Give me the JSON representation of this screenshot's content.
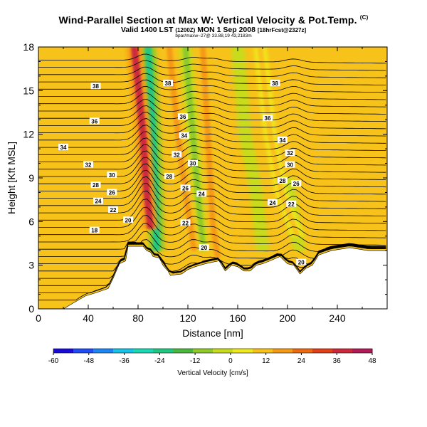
{
  "header": {
    "title": "Wind-Parallel Section at Max W: Vertical Velocity & Pot.Temp.",
    "copyright": "(C)",
    "valid_prefix": "Valid 1400 LST",
    "valid_z": "(1200Z)",
    "valid_date": "MON 1 Sep 2008",
    "run": "[18hrFcst@2327z]",
    "subtitle": "bpar/maxw~27@ 33.88,19 43,2183m"
  },
  "colorbar": {
    "label": "Vertical Velocity [cm/s]",
    "ticks": [
      -60,
      -48,
      -36,
      -24,
      -12,
      0,
      12,
      24,
      36,
      48
    ],
    "colors": [
      "#1a0bd8",
      "#1f4cf5",
      "#1b86f4",
      "#16c3e6",
      "#19d9b4",
      "#22c882",
      "#4bb840",
      "#8dca2a",
      "#c8dc1e",
      "#f0e91e",
      "#f7c21a",
      "#f59a16",
      "#ee6a12",
      "#e1401a",
      "#cc2a3c",
      "#b01c56"
    ]
  },
  "chart_data": {
    "type": "heatmap",
    "title": "Vertical Velocity & Potential Temperature cross-section",
    "xlabel": "Distance [nm]",
    "ylabel": "Height [Kft MSL]",
    "xlim": [
      0,
      280
    ],
    "ylim": [
      0,
      18
    ],
    "xticks": [
      0,
      40,
      80,
      120,
      160,
      200,
      240
    ],
    "yticks": [
      0,
      3,
      6,
      9,
      12,
      15,
      18
    ],
    "shading_variable": "Vertical Velocity [cm/s]",
    "contour_variable": "Potential Temperature",
    "contour_labels": [
      {
        "x": 45,
        "y": 5.4,
        "text": "18"
      },
      {
        "x": 60,
        "y": 6.8,
        "text": "22"
      },
      {
        "x": 48,
        "y": 7.4,
        "text": "24"
      },
      {
        "x": 59,
        "y": 8.0,
        "text": "26"
      },
      {
        "x": 46,
        "y": 8.5,
        "text": "28"
      },
      {
        "x": 59,
        "y": 9.2,
        "text": "30"
      },
      {
        "x": 40,
        "y": 9.9,
        "text": "32"
      },
      {
        "x": 20,
        "y": 11.1,
        "text": "34"
      },
      {
        "x": 45,
        "y": 12.9,
        "text": "36"
      },
      {
        "x": 46,
        "y": 15.3,
        "text": "38"
      },
      {
        "x": 72,
        "y": 6.1,
        "text": "20"
      },
      {
        "x": 104,
        "y": 15.5,
        "text": "38"
      },
      {
        "x": 116,
        "y": 13.2,
        "text": "36"
      },
      {
        "x": 117,
        "y": 11.9,
        "text": "34"
      },
      {
        "x": 111,
        "y": 10.6,
        "text": "32"
      },
      {
        "x": 124,
        "y": 10.0,
        "text": "30"
      },
      {
        "x": 105,
        "y": 9.1,
        "text": "28"
      },
      {
        "x": 118,
        "y": 8.3,
        "text": "26"
      },
      {
        "x": 131,
        "y": 7.9,
        "text": "24"
      },
      {
        "x": 118,
        "y": 5.9,
        "text": "22"
      },
      {
        "x": 133,
        "y": 4.2,
        "text": "20"
      },
      {
        "x": 190,
        "y": 15.5,
        "text": "38"
      },
      {
        "x": 184,
        "y": 13.1,
        "text": "36"
      },
      {
        "x": 196,
        "y": 11.6,
        "text": "34"
      },
      {
        "x": 202,
        "y": 10.7,
        "text": "32"
      },
      {
        "x": 202,
        "y": 9.9,
        "text": "30"
      },
      {
        "x": 196,
        "y": 8.8,
        "text": "28"
      },
      {
        "x": 207,
        "y": 8.6,
        "text": "26"
      },
      {
        "x": 188,
        "y": 7.3,
        "text": "24"
      },
      {
        "x": 203,
        "y": 7.2,
        "text": "22"
      },
      {
        "x": 211,
        "y": 3.2,
        "text": "20"
      }
    ],
    "terrain_top_kft": [
      [
        0,
        0
      ],
      [
        20,
        0
      ],
      [
        28,
        0.4
      ],
      [
        38,
        0.9
      ],
      [
        46,
        1.1
      ],
      [
        56,
        1.4
      ],
      [
        60,
        2.1
      ],
      [
        65,
        3.1
      ],
      [
        70,
        3.3
      ],
      [
        72,
        4.3
      ],
      [
        84,
        4.3
      ],
      [
        87,
        4.0
      ],
      [
        90,
        3.9
      ],
      [
        92,
        3.6
      ],
      [
        97,
        3.5
      ],
      [
        100,
        3.0
      ],
      [
        104,
        2.6
      ],
      [
        106,
        2.3
      ],
      [
        115,
        2.4
      ],
      [
        120,
        2.7
      ],
      [
        126,
        2.9
      ],
      [
        134,
        3.1
      ],
      [
        145,
        3.3
      ],
      [
        150,
        2.6
      ],
      [
        155,
        3.0
      ],
      [
        160,
        2.9
      ],
      [
        165,
        2.6
      ],
      [
        170,
        2.6
      ],
      [
        175,
        3.0
      ],
      [
        180,
        3.1
      ],
      [
        186,
        3.3
      ],
      [
        194,
        3.6
      ],
      [
        200,
        3.1
      ],
      [
        205,
        3.0
      ],
      [
        210,
        2.4
      ],
      [
        215,
        2.8
      ],
      [
        220,
        3.0
      ],
      [
        225,
        3.7
      ],
      [
        235,
        4.0
      ],
      [
        250,
        4.2
      ],
      [
        265,
        4.0
      ],
      [
        280,
        4.0
      ]
    ],
    "updraft_bands": [
      {
        "x_kft": [
          [
            77,
            18
          ],
          [
            84,
            12
          ],
          [
            87,
            8
          ],
          [
            90,
            5.5
          ]
        ],
        "w_cms": 40
      },
      {
        "x_kft": [
          [
            105,
            18
          ],
          [
            112,
            12
          ],
          [
            118,
            8
          ],
          [
            125,
            4
          ]
        ],
        "w_cms": 18
      },
      {
        "x_kft": [
          [
            132,
            18
          ],
          [
            136,
            12
          ],
          [
            140,
            6
          ],
          [
            144,
            3.5
          ]
        ],
        "w_cms": 16
      },
      {
        "x_kft": [
          [
            178,
            18
          ],
          [
            186,
            12
          ],
          [
            195,
            8
          ],
          [
            208,
            5
          ]
        ],
        "w_cms": 14
      }
    ],
    "downdraft_bands": [
      {
        "x_kft": [
          [
            88,
            18
          ],
          [
            92,
            12
          ],
          [
            94,
            8
          ],
          [
            95,
            4
          ]
        ],
        "w_cms": -22
      },
      {
        "x_kft": [
          [
            118,
            18
          ],
          [
            124,
            12
          ],
          [
            128,
            8
          ],
          [
            132,
            4
          ]
        ],
        "w_cms": -8
      },
      {
        "x_kft": [
          [
            160,
            18
          ],
          [
            166,
            12
          ],
          [
            175,
            8
          ],
          [
            180,
            4
          ]
        ],
        "w_cms": -4
      },
      {
        "x_kft": [
          [
            200,
            9
          ],
          [
            205,
            6
          ],
          [
            210,
            4
          ]
        ],
        "w_cms": -6
      }
    ]
  }
}
